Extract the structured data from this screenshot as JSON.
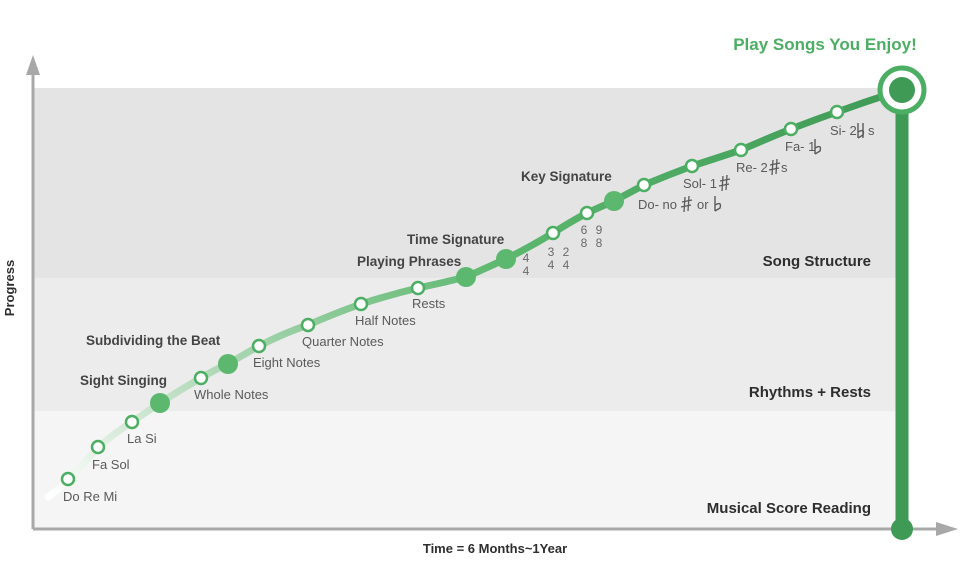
{
  "goal_label": "Play Songs You Enjoy!",
  "axes": {
    "x_label": "Time = 6 Months~1Year",
    "y_label": "Progress"
  },
  "bands": [
    "Song Structure",
    "Rhythms + Rests",
    "Musical Score Reading"
  ],
  "milestones": [
    "Do Re Mi",
    "Fa Sol",
    "La Si",
    "Whole Notes",
    "Eight Notes",
    "Quarter Notes",
    "Half Notes",
    "Rests",
    "Do- no",
    "Sol- 1",
    "Re- 2",
    "Fa- 1",
    "Si- 2"
  ],
  "milestone_suffixes": [
    "or",
    "s",
    "s"
  ],
  "major_stages": [
    "Sight Singing",
    "Subdividing the Beat",
    "Playing Phrases",
    "Time Signature",
    "Key Signature"
  ],
  "time_signatures": [
    {
      "top": "4",
      "bottom": "4"
    },
    {
      "top": "3",
      "bottom": "4"
    },
    {
      "top": "2",
      "bottom": "4"
    },
    {
      "top": "6",
      "bottom": "8"
    },
    {
      "top": "9",
      "bottom": "8"
    }
  ],
  "colors": {
    "accent": "#4cae63",
    "accent_dark": "#3f9a55",
    "band_top": "#e4e4e4",
    "band_mid": "#ececec",
    "band_bottom": "#f5f5f5",
    "axis": "#a8a8a8"
  }
}
